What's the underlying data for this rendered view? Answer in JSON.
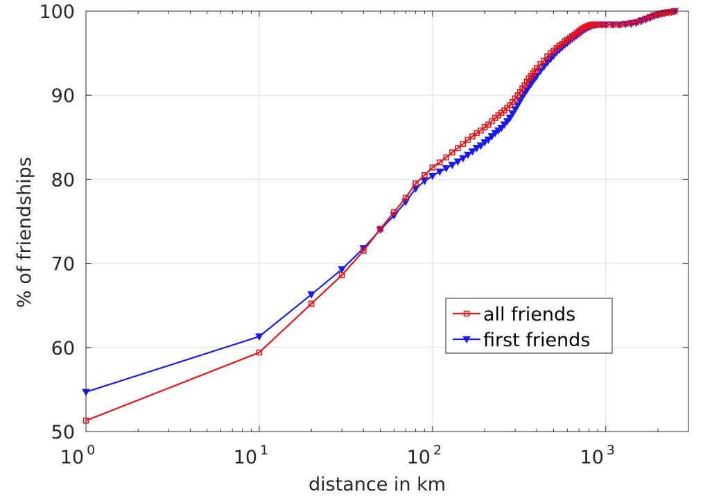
{
  "chart_data": {
    "type": "line",
    "title": "",
    "xlabel": "distance in km",
    "ylabel": "% of friendships",
    "xscale": "log",
    "xlim": [
      1,
      3000
    ],
    "ylim": [
      50,
      100
    ],
    "grid": true,
    "legend_position": "lower-right",
    "x_tick_labels": [
      {
        "base": "10",
        "exp": "0",
        "value": 1
      },
      {
        "base": "10",
        "exp": "1",
        "value": 10
      },
      {
        "base": "10",
        "exp": "2",
        "value": 100
      },
      {
        "base": "10",
        "exp": "3",
        "value": 1000
      }
    ],
    "y_ticks": [
      50,
      60,
      70,
      80,
      90,
      100
    ],
    "series": [
      {
        "name": "all friends",
        "color": "#e8141a",
        "marker": "square",
        "x": [
          1,
          10,
          20,
          30,
          40,
          50,
          60,
          70,
          80,
          90,
          100,
          110,
          120,
          130,
          140,
          150,
          160,
          170,
          180,
          190,
          200,
          210,
          220,
          230,
          240,
          250,
          260,
          270,
          280,
          290,
          300,
          310,
          320,
          330,
          340,
          350,
          360,
          370,
          380,
          390,
          400,
          420,
          440,
          460,
          480,
          500,
          520,
          540,
          560,
          580,
          600,
          620,
          640,
          660,
          680,
          700,
          720,
          740,
          760,
          780,
          800,
          820,
          840,
          860,
          880,
          900,
          950,
          1000,
          1100,
          1200,
          1300,
          1400,
          1500,
          1600,
          1700,
          1800,
          1900,
          2000,
          2100,
          2200,
          2300,
          2400,
          2500
        ],
        "y": [
          51.3,
          59.4,
          65.2,
          68.6,
          71.5,
          74.1,
          76.1,
          77.8,
          79.5,
          80.5,
          81.4,
          82.0,
          82.6,
          83.2,
          83.7,
          84.2,
          84.7,
          85.1,
          85.5,
          85.8,
          86.2,
          86.5,
          86.9,
          87.3,
          87.6,
          87.9,
          88.2,
          88.5,
          88.8,
          89.2,
          89.6,
          90.0,
          90.4,
          90.8,
          91.2,
          91.6,
          92.0,
          92.3,
          92.6,
          92.9,
          93.2,
          93.7,
          94.1,
          94.6,
          95.0,
          95.3,
          95.6,
          95.9,
          96.1,
          96.4,
          96.6,
          96.8,
          97.0,
          97.2,
          97.4,
          97.6,
          97.8,
          97.95,
          98.1,
          98.2,
          98.3,
          98.35,
          98.4,
          98.4,
          98.4,
          98.4,
          98.4,
          98.4,
          98.4,
          98.4,
          98.5,
          98.6,
          98.7,
          98.9,
          99.1,
          99.3,
          99.5,
          99.6,
          99.7,
          99.8,
          99.85,
          99.9,
          100
        ]
      },
      {
        "name": "first friends",
        "color": "#1a1aee",
        "marker": "triangle-down",
        "x": [
          1,
          10,
          20,
          30,
          40,
          50,
          60,
          70,
          80,
          90,
          100,
          110,
          120,
          130,
          140,
          150,
          160,
          170,
          180,
          190,
          200,
          210,
          220,
          230,
          240,
          250,
          260,
          270,
          280,
          290,
          300,
          310,
          320,
          330,
          340,
          350,
          360,
          370,
          380,
          390,
          400,
          420,
          440,
          460,
          480,
          500,
          520,
          540,
          560,
          580,
          600,
          620,
          640,
          660,
          680,
          700,
          720,
          740,
          760,
          780,
          800,
          820,
          840,
          860,
          880,
          900,
          950,
          1000,
          1100,
          1200,
          1300,
          1400,
          1500,
          1600,
          1700,
          1800,
          1900,
          2000,
          2100,
          2200,
          2300,
          2400,
          2500
        ],
        "y": [
          54.7,
          61.3,
          66.3,
          69.3,
          71.8,
          74.0,
          75.7,
          77.3,
          78.9,
          79.8,
          80.4,
          80.9,
          81.3,
          81.7,
          82.1,
          82.5,
          82.9,
          83.3,
          83.7,
          84.0,
          84.4,
          84.7,
          85.1,
          85.5,
          85.8,
          86.1,
          86.5,
          86.9,
          87.3,
          87.8,
          88.3,
          88.8,
          89.3,
          89.8,
          90.2,
          90.6,
          91.0,
          91.3,
          91.7,
          92.0,
          92.3,
          92.9,
          93.4,
          93.9,
          94.3,
          94.7,
          95.1,
          95.4,
          95.7,
          96.0,
          96.2,
          96.5,
          96.7,
          96.9,
          97.1,
          97.3,
          97.5,
          97.7,
          97.85,
          98.0,
          98.1,
          98.2,
          98.3,
          98.35,
          98.4,
          98.4,
          98.4,
          98.4,
          98.4,
          98.4,
          98.45,
          98.5,
          98.6,
          98.8,
          99.0,
          99.2,
          99.4,
          99.55,
          99.7,
          99.8,
          99.85,
          99.9,
          100
        ]
      }
    ]
  }
}
